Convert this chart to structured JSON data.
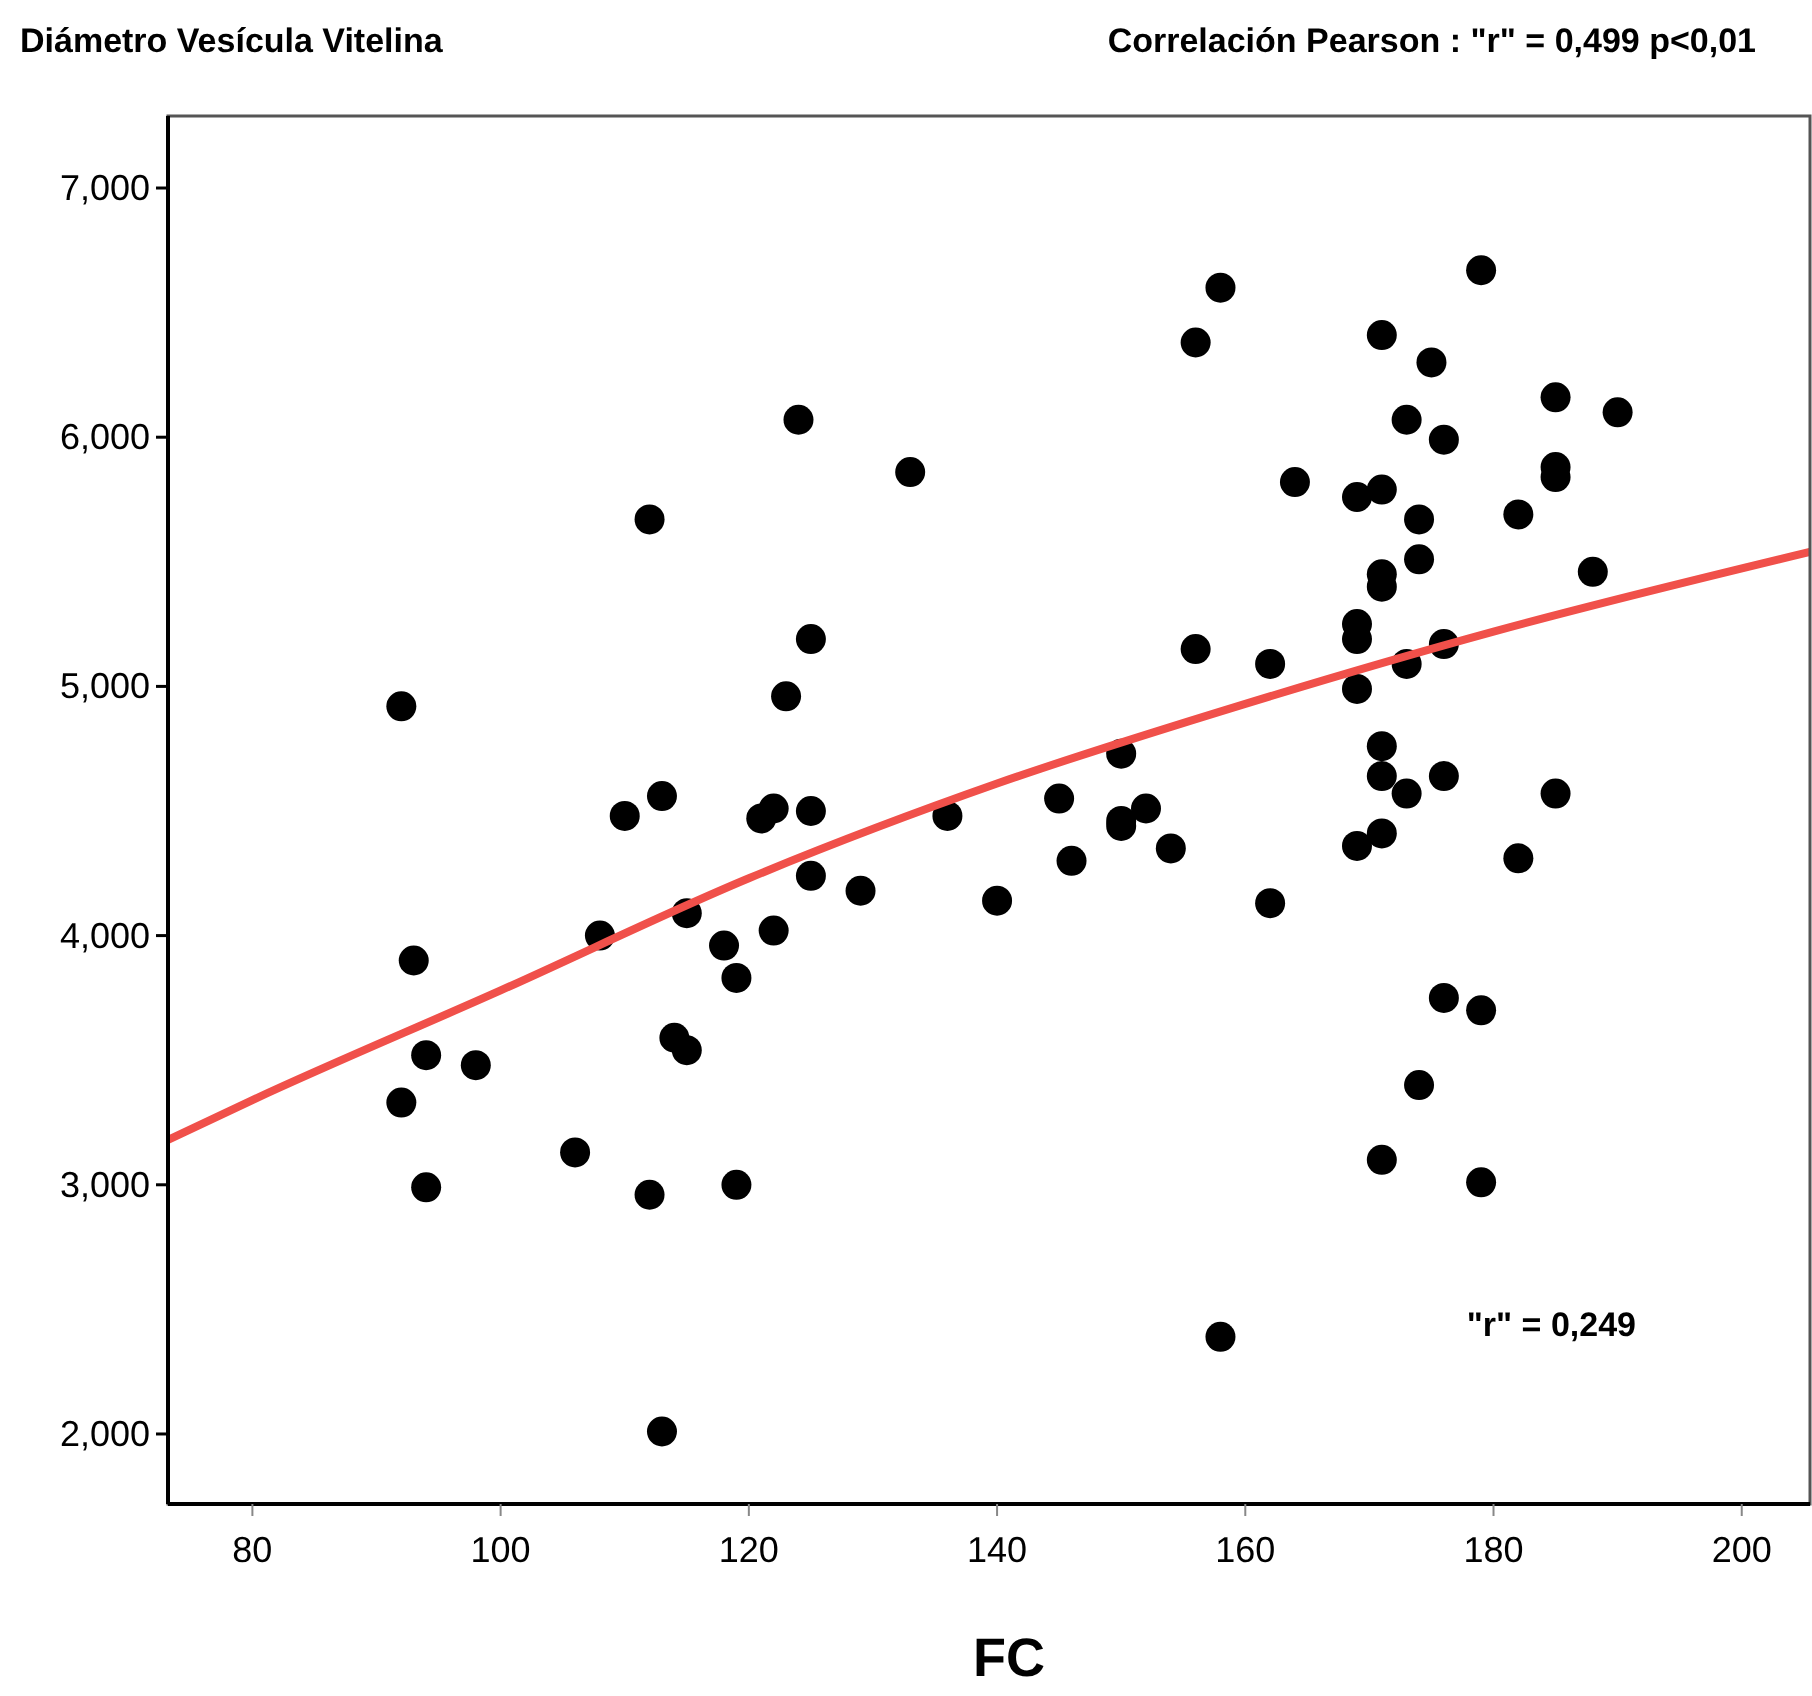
{
  "chart_data": {
    "type": "scatter",
    "title": "Correlación Pearson : \"r\" = 0,499  p<0,01",
    "ylabel": "Diámetro Vesícula Vitelina",
    "xlabel": "FC",
    "xlim": [
      73.2,
      205.5
    ],
    "ylim": [
      1.719,
      7.289
    ],
    "xticks": [
      80,
      100,
      120,
      140,
      160,
      180,
      200
    ],
    "yticks": [
      {
        "value": 2,
        "label": "2,000"
      },
      {
        "value": 3,
        "label": "3,000"
      },
      {
        "value": 4,
        "label": "4,000"
      },
      {
        "value": 5,
        "label": "5,000"
      },
      {
        "value": 6,
        "label": "6,000"
      },
      {
        "value": 7,
        "label": "7,000"
      }
    ],
    "grid": false,
    "marker": "circle",
    "annotations": [
      "\"r\" = 0,249"
    ],
    "series": [
      {
        "color": "#000000",
        "x": [
          92,
          92,
          93,
          94,
          94,
          98,
          106,
          108,
          110,
          112,
          112,
          113,
          113,
          114,
          115,
          115,
          118,
          119,
          119,
          121,
          122,
          122,
          123,
          124,
          125,
          125,
          125,
          129,
          133,
          136,
          140,
          145,
          146,
          150,
          150,
          150,
          152,
          154,
          156,
          156,
          158,
          158,
          162,
          162,
          164,
          169,
          169,
          169,
          169,
          169,
          171,
          171,
          171,
          171,
          171,
          171,
          171,
          171,
          173,
          173,
          173,
          174,
          174,
          174,
          175,
          176,
          176,
          176,
          176,
          179,
          179,
          179,
          182,
          182,
          185,
          185,
          185,
          185,
          188,
          190
        ],
        "values": [
          4.92,
          3.33,
          3.9,
          3.52,
          2.99,
          3.48,
          3.13,
          4.0,
          4.48,
          5.67,
          2.96,
          4.56,
          2.01,
          3.59,
          4.09,
          3.54,
          3.96,
          3.83,
          3.0,
          4.47,
          4.51,
          4.02,
          4.96,
          6.07,
          5.19,
          4.5,
          4.24,
          4.18,
          5.86,
          4.48,
          4.14,
          4.55,
          4.3,
          4.73,
          4.46,
          4.44,
          4.51,
          4.35,
          6.38,
          5.15,
          6.6,
          2.39,
          5.09,
          4.13,
          5.82,
          5.76,
          5.25,
          5.19,
          4.99,
          4.36,
          6.41,
          5.79,
          5.45,
          5.4,
          4.76,
          4.64,
          4.41,
          3.1,
          6.07,
          5.09,
          4.57,
          5.67,
          5.51,
          3.4,
          6.3,
          5.99,
          5.17,
          4.64,
          3.75,
          6.67,
          3.7,
          3.01,
          5.69,
          4.31,
          6.16,
          5.88,
          5.84,
          4.57,
          5.46,
          6.1
        ]
      },
      {
        "type": "line",
        "color": "#f0504a",
        "marker": "none",
        "line_style": "solid",
        "x": [
          73.2,
          80,
          100,
          120,
          140,
          160,
          180,
          205.5
        ],
        "values": [
          3.18,
          3.34,
          3.78,
          4.23,
          4.61,
          4.93,
          5.22,
          5.54
        ]
      }
    ]
  }
}
